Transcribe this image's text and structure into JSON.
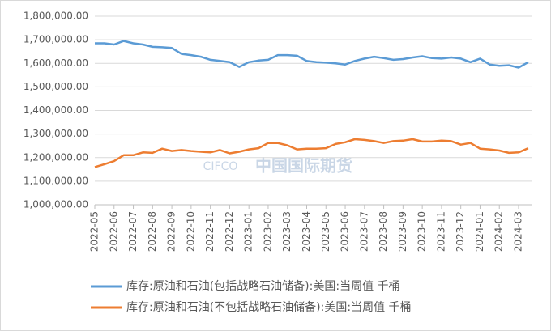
{
  "chart_data": {
    "type": "line",
    "watermark": "中国国际期货",
    "watermark_logo": "CIFCO",
    "categories": [
      "2022-05",
      null,
      "2022-06",
      null,
      "2022-07",
      null,
      "2022-08",
      null,
      "2022-09",
      null,
      "2022-10",
      null,
      "2022-11",
      null,
      "2022-12",
      null,
      "2023-01",
      null,
      "2023-02",
      null,
      "2023-03",
      null,
      "2023-04",
      null,
      "2023-05",
      null,
      "2023-06",
      null,
      "2023-07",
      null,
      "2023-08",
      null,
      "2023-09",
      null,
      "2023-10",
      null,
      "2023-11",
      null,
      "2023-12",
      null,
      "2024-01",
      null,
      "2024-02",
      null,
      "2024-03",
      null
    ],
    "series": [
      {
        "name": "库存:原油和石油(包括战略石油储备):美国:当周值 千桶",
        "color": "#5b9bd5",
        "values": [
          1685000,
          1685000,
          1680000,
          1695000,
          1685000,
          1680000,
          1670000,
          1668000,
          1665000,
          1640000,
          1635000,
          1628000,
          1615000,
          1610000,
          1605000,
          1585000,
          1605000,
          1612000,
          1615000,
          1635000,
          1635000,
          1632000,
          1610000,
          1605000,
          1603000,
          1600000,
          1595000,
          1610000,
          1620000,
          1628000,
          1622000,
          1615000,
          1618000,
          1625000,
          1630000,
          1622000,
          1620000,
          1625000,
          1620000,
          1605000,
          1620000,
          1595000,
          1590000,
          1592000,
          1582000,
          1605000
        ]
      },
      {
        "name": "库存:原油和石油(不包括战略石油储备):美国:当周值 千桶",
        "color": "#ed7d31",
        "values": [
          1160000,
          1172000,
          1185000,
          1210000,
          1210000,
          1222000,
          1220000,
          1238000,
          1228000,
          1232000,
          1228000,
          1225000,
          1222000,
          1232000,
          1218000,
          1225000,
          1235000,
          1240000,
          1262000,
          1262000,
          1252000,
          1235000,
          1238000,
          1238000,
          1240000,
          1258000,
          1265000,
          1278000,
          1275000,
          1270000,
          1262000,
          1270000,
          1272000,
          1278000,
          1268000,
          1268000,
          1272000,
          1270000,
          1255000,
          1262000,
          1238000,
          1235000,
          1230000,
          1220000,
          1222000,
          1240000
        ]
      }
    ],
    "ylim": [
      1000000,
      1800000
    ],
    "yticks": [
      {
        "value": 1000000,
        "label": "1,000,000.00"
      },
      {
        "value": 1100000,
        "label": "1,100,000.00"
      },
      {
        "value": 1200000,
        "label": "1,200,000.00"
      },
      {
        "value": 1300000,
        "label": "1,300,000.00"
      },
      {
        "value": 1400000,
        "label": "1,400,000.00"
      },
      {
        "value": 1500000,
        "label": "1,500,000.00"
      },
      {
        "value": 1600000,
        "label": "1,600,000.00"
      },
      {
        "value": 1700000,
        "label": "1,700,000.00"
      },
      {
        "value": 1800000,
        "label": "1,800,000.00"
      }
    ],
    "grid": true,
    "legend": "bottom"
  }
}
